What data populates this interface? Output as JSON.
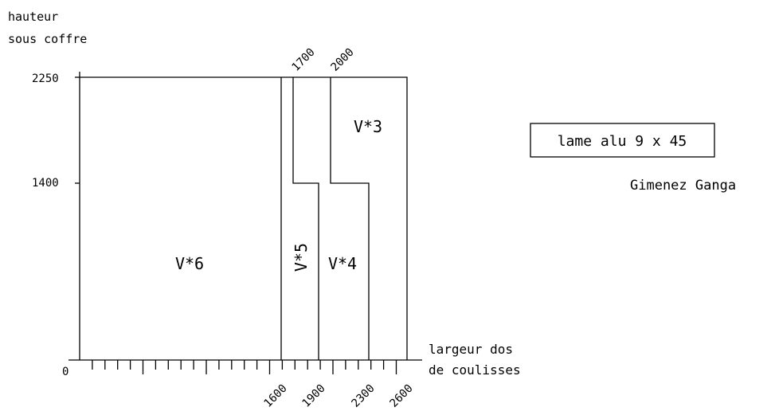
{
  "y_axis": {
    "label_line1": "hauteur",
    "label_line2": "sous coffre",
    "ticks": [
      "2250",
      "1400"
    ]
  },
  "x_axis": {
    "label_line1": "largeur dos",
    "label_line2": "de coulisses",
    "origin": "0",
    "bottom_ticks": [
      "1600",
      "1900",
      "2300",
      "2600"
    ],
    "top_ticks": [
      "1700",
      "2000"
    ]
  },
  "zones": {
    "v6": "V*6",
    "v5": "V*5",
    "v4": "V*4",
    "v3": "V*3"
  },
  "material_box": "lame alu 9 x 45",
  "author": "Gimenez Ganga"
}
